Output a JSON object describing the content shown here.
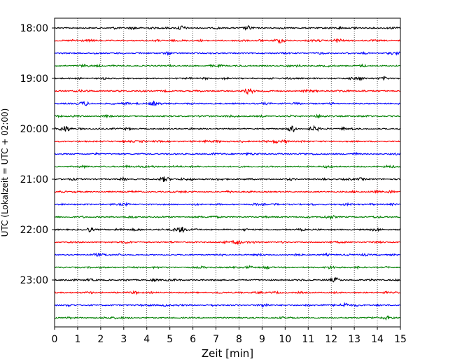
{
  "chart_data": {
    "type": "line",
    "title": "",
    "xlabel": "Zeit  [min]",
    "ylabel": "UTC (Lokalzeit = UTC + 02:00)",
    "xlim": [
      0,
      15
    ],
    "x_ticks": [
      "0",
      "1",
      "2",
      "3",
      "4",
      "5",
      "6",
      "7",
      "8",
      "9",
      "10",
      "11",
      "12",
      "13",
      "14",
      "15"
    ],
    "y_tick_labels": [
      "18:00",
      "19:00",
      "20:00",
      "21:00",
      "22:00",
      "23:00"
    ],
    "grid": "vertical dotted",
    "start_time": "18:00",
    "end_time": "23:45",
    "trace_interval_min": 15,
    "trace_colors": [
      "#000000",
      "#ff0000",
      "#0000ff",
      "#008000"
    ],
    "bursts": [
      {
        "trace": 0,
        "x": 5.5,
        "amp": 1.3
      },
      {
        "trace": 0,
        "x": 8.4,
        "amp": 1.2
      },
      {
        "trace": 1,
        "x": 12.3,
        "amp": 1.2
      },
      {
        "trace": 1,
        "x": 9.8,
        "amp": 1.1
      },
      {
        "trace": 5,
        "x": 8.4,
        "amp": 1.4
      },
      {
        "trace": 6,
        "x": 1.3,
        "amp": 1.2
      },
      {
        "trace": 6,
        "x": 4.3,
        "amp": 1.2
      },
      {
        "trace": 8,
        "x": 0.5,
        "amp": 1.5
      },
      {
        "trace": 8,
        "x": 10.3,
        "amp": 1.8
      },
      {
        "trace": 8,
        "x": 11.3,
        "amp": 1.3
      },
      {
        "trace": 12,
        "x": 4.8,
        "amp": 1.2
      },
      {
        "trace": 16,
        "x": 5.5,
        "amp": 1.6
      },
      {
        "trace": 16,
        "x": 1.5,
        "amp": 1.2
      },
      {
        "trace": 17,
        "x": 7.9,
        "amp": 1.2
      },
      {
        "trace": 20,
        "x": 12.2,
        "amp": 1.2
      },
      {
        "trace": 22,
        "x": 9.1,
        "amp": 1.1
      },
      {
        "trace": 22,
        "x": 12.6,
        "amp": 1.2
      }
    ]
  }
}
